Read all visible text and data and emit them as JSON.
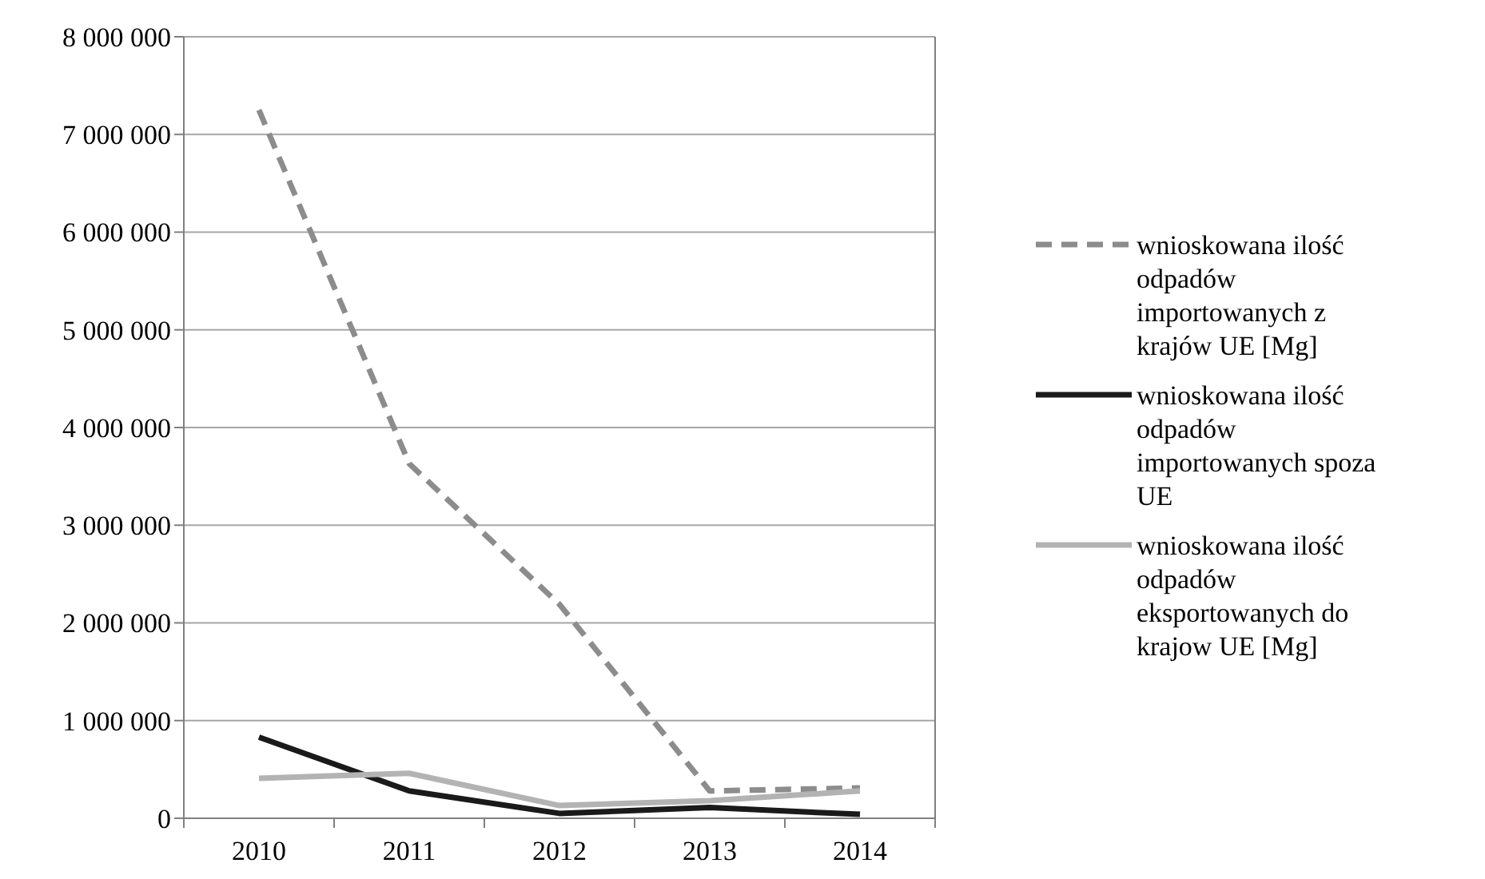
{
  "chart_data": {
    "type": "line",
    "categories": [
      "2010",
      "2011",
      "2012",
      "2013",
      "2014"
    ],
    "series": [
      {
        "name": "wnioskowana ilość odpadów importowanych z krajów UE [Mg]",
        "color": "#8c8c8c",
        "line_style": "dashed",
        "values": [
          7250000,
          3630000,
          2190000,
          280000,
          310000
        ]
      },
      {
        "name": "wnioskowana ilość odpadów importowanych spoza UE",
        "color": "#1a1a1a",
        "line_style": "solid",
        "values": [
          830000,
          280000,
          50000,
          110000,
          40000
        ]
      },
      {
        "name": "wnioskowana ilość odpadów eksportowanych do krajow UE [Mg]",
        "color": "#b3b3b3",
        "line_style": "solid",
        "values": [
          410000,
          460000,
          130000,
          180000,
          280000
        ]
      }
    ],
    "ylim": [
      0,
      8000000
    ],
    "yticks": [
      {
        "value": 0,
        "label": "0"
      },
      {
        "value": 1000000,
        "label": "1 000 000"
      },
      {
        "value": 2000000,
        "label": "2 000 000"
      },
      {
        "value": 3000000,
        "label": "3 000 000"
      },
      {
        "value": 4000000,
        "label": "4 000 000"
      },
      {
        "value": 5000000,
        "label": "5 000 000"
      },
      {
        "value": 6000000,
        "label": "6 000 000"
      },
      {
        "value": 7000000,
        "label": "7 000 000"
      },
      {
        "value": 8000000,
        "label": "8 000 000"
      }
    ],
    "grid": "y",
    "legend": "right",
    "marker": "none"
  }
}
